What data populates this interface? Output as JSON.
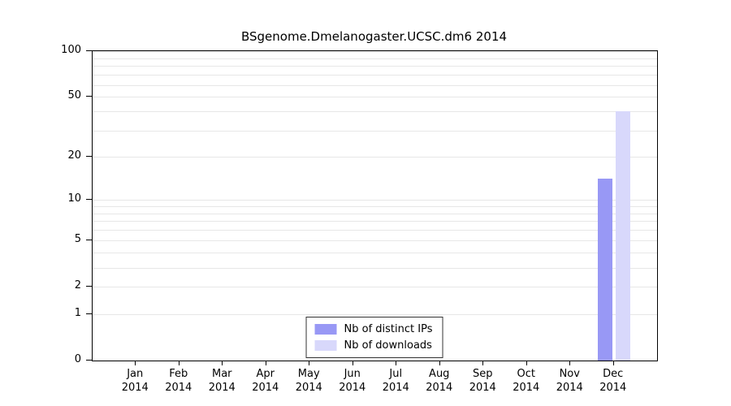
{
  "chart_data": {
    "type": "bar",
    "title": "BSgenome.Dmelanogaster.UCSC.dm6 2014",
    "categories": [
      "Jan",
      "Feb",
      "Mar",
      "Apr",
      "May",
      "Jun",
      "Jul",
      "Aug",
      "Sep",
      "Oct",
      "Nov",
      "Dec"
    ],
    "category_year": "2014",
    "series": [
      {
        "name": "Nb of distinct IPs",
        "color": "#9898f5",
        "values": [
          0,
          0,
          0,
          0,
          0,
          0,
          0,
          0,
          0,
          0,
          0,
          14
        ]
      },
      {
        "name": "Nb of downloads",
        "color": "#d8d8fb",
        "values": [
          0,
          0,
          0,
          0,
          0,
          0,
          0,
          0,
          0,
          0,
          0,
          40
        ]
      }
    ],
    "xlabel": "",
    "ylabel": "",
    "ylim": [
      0,
      100
    ],
    "y_scale": "log1p",
    "y_ticks": [
      0,
      1,
      2,
      5,
      10,
      20,
      50,
      100
    ],
    "grid_values": [
      1,
      2,
      3,
      4,
      5,
      6,
      7,
      8,
      9,
      10,
      20,
      30,
      40,
      50,
      60,
      70,
      80,
      90,
      100
    ],
    "grid": "horizontal-minor",
    "legend_position": "bottom-center"
  }
}
